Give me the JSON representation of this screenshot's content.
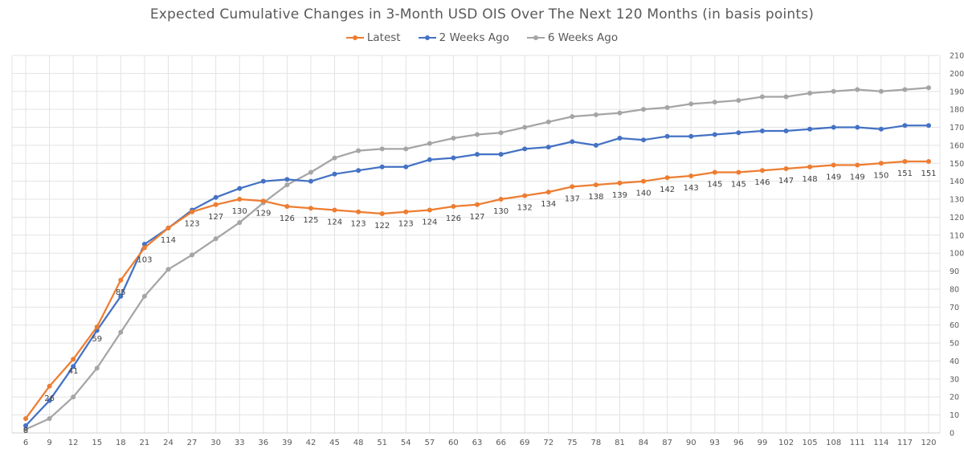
{
  "chart_data": {
    "type": "line",
    "title": "Expected Cumulative Changes in 3-Month USD OIS Over The Next 120 Months (in basis points)",
    "xlabel": "",
    "ylabel": "",
    "ylim": [
      0,
      210
    ],
    "y_ticks": [
      0,
      10,
      20,
      30,
      40,
      50,
      60,
      70,
      80,
      90,
      100,
      110,
      120,
      130,
      140,
      150,
      160,
      170,
      180,
      190,
      200,
      210
    ],
    "y_axis_position": "right",
    "grid": true,
    "legend_position": "top",
    "categories": [
      "6",
      "9",
      "12",
      "15",
      "18",
      "21",
      "24",
      "27",
      "30",
      "33",
      "36",
      "39",
      "42",
      "45",
      "48",
      "51",
      "54",
      "57",
      "60",
      "63",
      "66",
      "69",
      "72",
      "75",
      "78",
      "81",
      "84",
      "87",
      "90",
      "93",
      "96",
      "99",
      "102",
      "105",
      "108",
      "111",
      "114",
      "117",
      "120"
    ],
    "series": [
      {
        "name": "Latest",
        "color": "#ED7D31",
        "values": [
          8,
          26,
          41,
          59,
          85,
          103,
          114,
          123,
          127,
          130,
          129,
          126,
          125,
          124,
          123,
          122,
          123,
          124,
          126,
          127,
          130,
          132,
          134,
          137,
          138,
          139,
          140,
          142,
          143,
          145,
          145,
          146,
          147,
          148,
          149,
          149,
          150,
          151,
          151
        ],
        "labels": [
          "8",
          "26",
          "41",
          "59",
          "85",
          "103",
          "114",
          "123",
          "127",
          "130",
          "129",
          "126",
          "125",
          "124",
          "123",
          "122",
          "123",
          "124",
          "126",
          "127",
          "130",
          "132",
          "134",
          "137",
          "138",
          "139",
          "140",
          "142",
          "143",
          "145",
          "145",
          "146",
          "147",
          "148",
          "149",
          "149",
          "150",
          "151",
          "151"
        ]
      },
      {
        "name": "2 Weeks Ago",
        "color": "#4472C4",
        "values": [
          4,
          18,
          37,
          57,
          76,
          105,
          114,
          124,
          131,
          136,
          140,
          141,
          140,
          144,
          146,
          148,
          148,
          152,
          153,
          155,
          155,
          158,
          159,
          162,
          160,
          164,
          163,
          165,
          165,
          166,
          167,
          168,
          168,
          169,
          170,
          170,
          169,
          171,
          171
        ]
      },
      {
        "name": "6 Weeks Ago",
        "color": "#A5A5A5",
        "values": [
          2,
          8,
          20,
          36,
          56,
          76,
          91,
          99,
          108,
          117,
          128,
          138,
          145,
          153,
          157,
          158,
          158,
          161,
          164,
          166,
          167,
          170,
          173,
          176,
          177,
          178,
          180,
          181,
          183,
          184,
          185,
          187,
          187,
          189,
          190,
          191,
          190,
          191,
          192
        ]
      }
    ]
  }
}
